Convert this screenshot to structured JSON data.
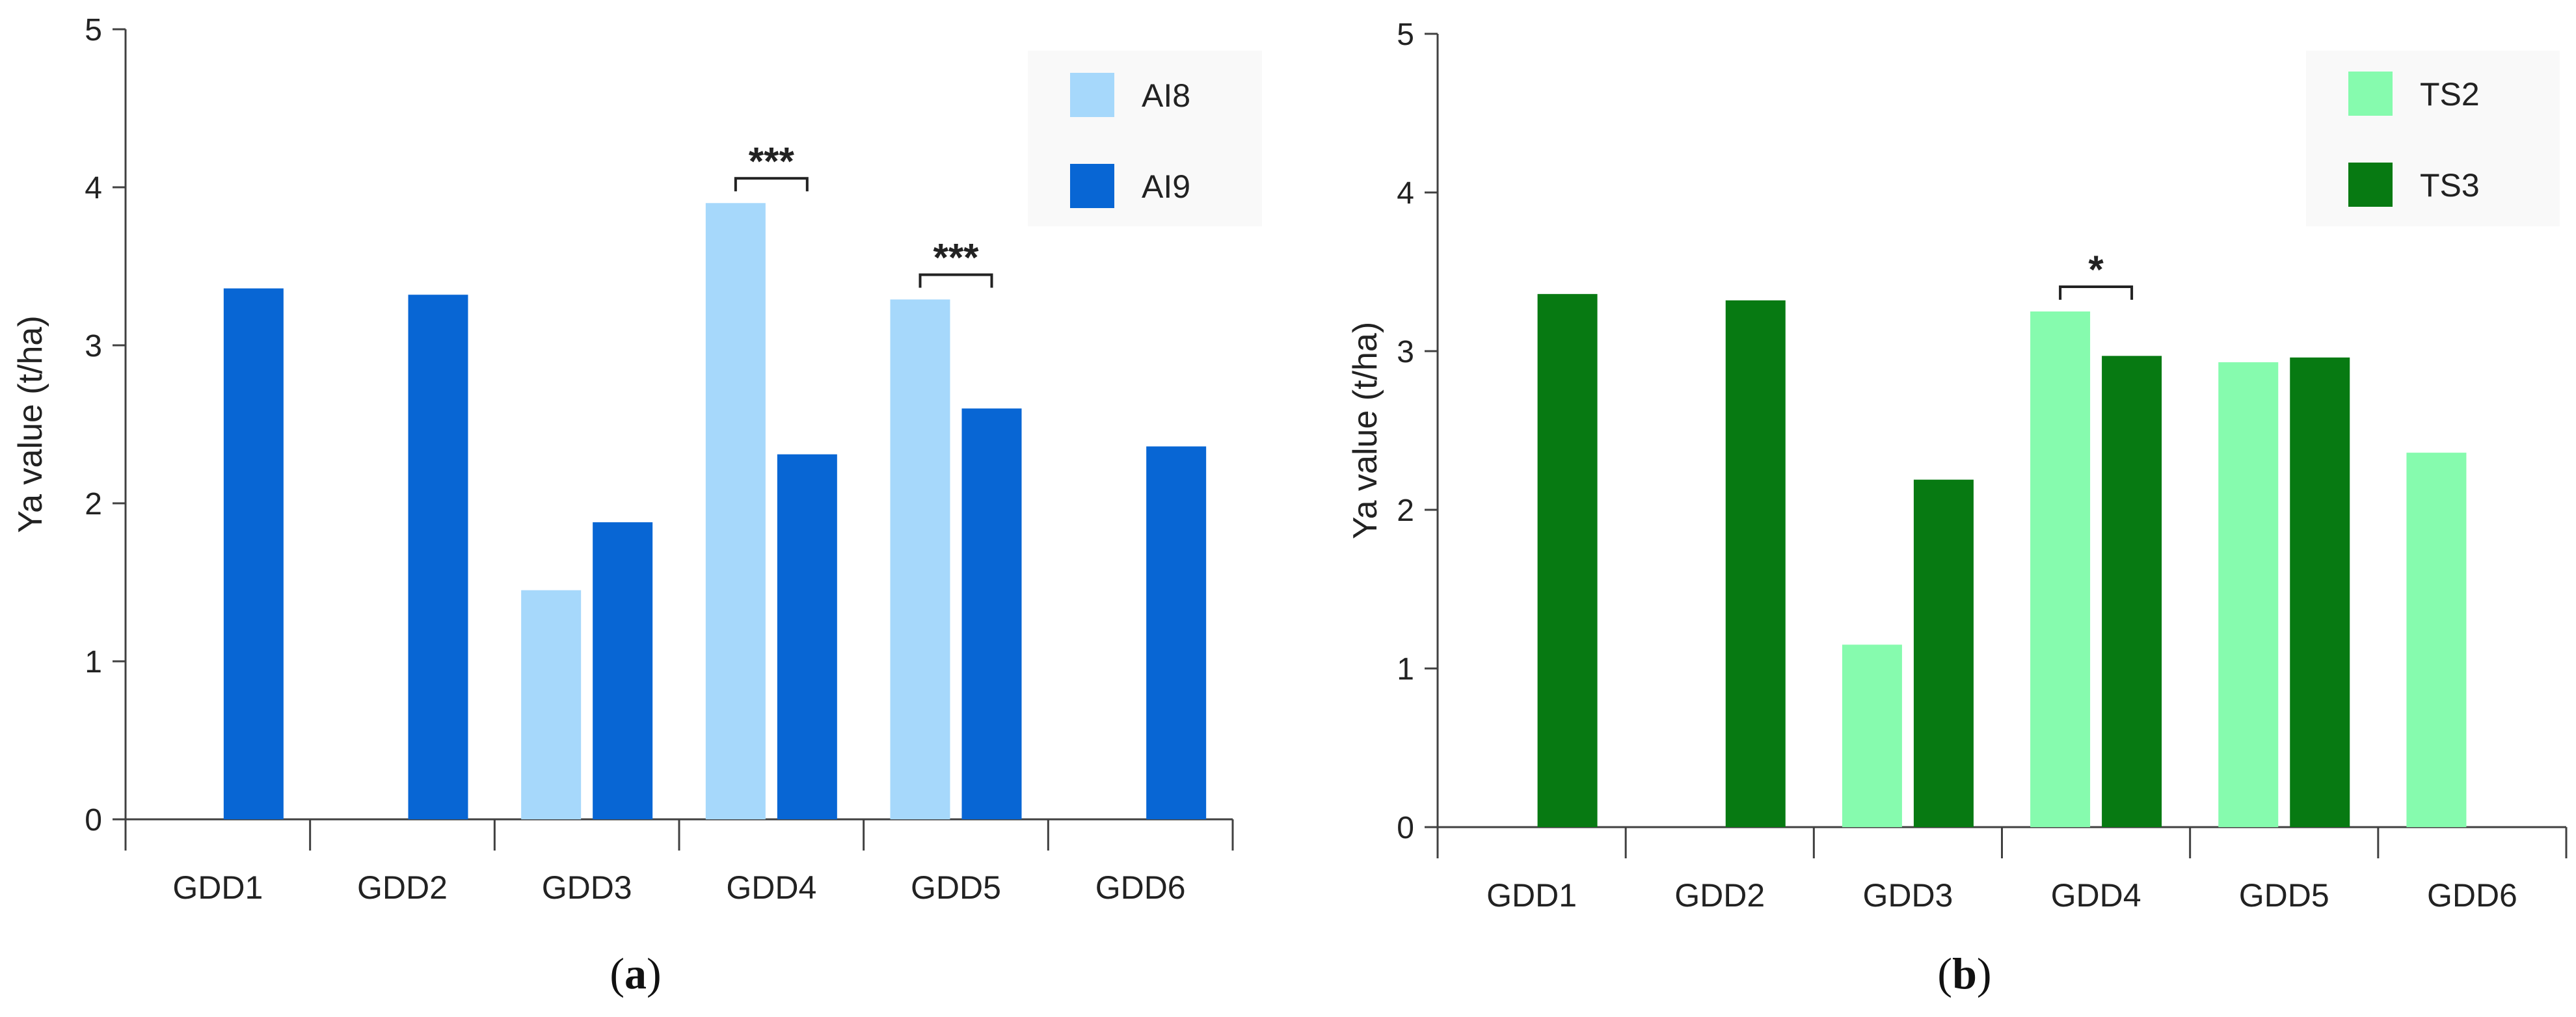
{
  "chart_data": [
    {
      "type": "bar",
      "panel_label": "a",
      "ylabel": "Ya value (t/ha)",
      "ylim": [
        0,
        5
      ],
      "yticks": [
        "0",
        "1",
        "2",
        "3",
        "4",
        "5"
      ],
      "categories": [
        "GDD1",
        "GDD2",
        "GDD3",
        "GDD4",
        "GDD5",
        "GDD6"
      ],
      "legend_position": "top-right",
      "series": [
        {
          "name": "AI8",
          "color": "#a6d8fb",
          "values": [
            null,
            null,
            1.45,
            3.9,
            3.29,
            null
          ]
        },
        {
          "name": "AI9",
          "color": "#0866d4",
          "values": [
            3.36,
            3.32,
            1.88,
            2.31,
            2.6,
            2.36
          ]
        }
      ],
      "annotations": [
        {
          "category": "GDD4",
          "text": "***"
        },
        {
          "category": "GDD5",
          "text": "***"
        }
      ]
    },
    {
      "type": "bar",
      "panel_label": "b",
      "ylabel": "Ya value (t/ha)",
      "ylim": [
        0,
        5
      ],
      "yticks": [
        "0",
        "1",
        "2",
        "3",
        "4",
        "5"
      ],
      "categories": [
        "GDD1",
        "GDD2",
        "GDD3",
        "GDD4",
        "GDD5",
        "GDD6"
      ],
      "legend_position": "top-right",
      "series": [
        {
          "name": "TS2",
          "color": "#86fbae",
          "values": [
            null,
            null,
            1.15,
            3.25,
            2.93,
            2.36
          ]
        },
        {
          "name": "TS3",
          "color": "#077a12",
          "values": [
            3.36,
            3.32,
            2.19,
            2.97,
            2.96,
            null
          ]
        }
      ],
      "annotations": [
        {
          "category": "GDD4",
          "text": "*"
        }
      ]
    }
  ]
}
